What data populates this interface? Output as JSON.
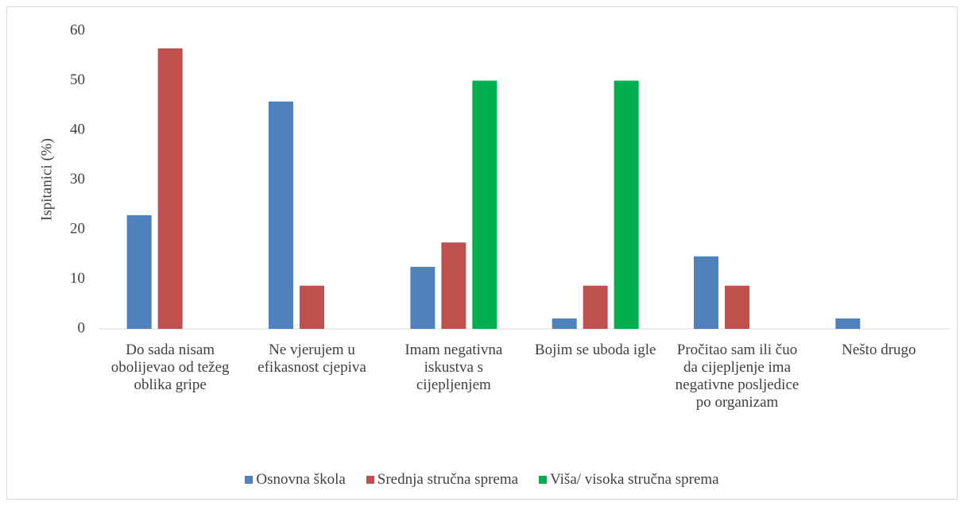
{
  "chart_data": {
    "type": "bar",
    "y_label": "Ispitanici (%)",
    "categories": [
      "Do sada nisam obolijevao od težeg oblika gripe",
      "Ne vjerujem u efikasnost cjepiva",
      "Imam negativna iskustva s cijepljenjem",
      "Bojim se uboda igle",
      "Pročitao sam ili čuo da cijepljenje ima negativne posljedice po organizam",
      "Nešto drugo"
    ],
    "series": [
      {
        "name": "Osnovna škola",
        "color": "#4f81bd",
        "values": [
          22.9,
          45.8,
          12.5,
          2.1,
          14.6,
          2.1
        ]
      },
      {
        "name": "Srednja stručna sprema",
        "color": "#c0504d",
        "values": [
          56.5,
          8.7,
          17.4,
          8.7,
          8.7,
          0
        ]
      },
      {
        "name": "Viša/ visoka stručna sprema",
        "color": "#00b050",
        "values": [
          0,
          0,
          50,
          50,
          0,
          0
        ]
      }
    ],
    "ylim": [
      0,
      60
    ],
    "yticks": [
      0,
      10,
      20,
      30,
      40,
      50,
      60
    ],
    "grid": false,
    "legend": "bottom"
  }
}
